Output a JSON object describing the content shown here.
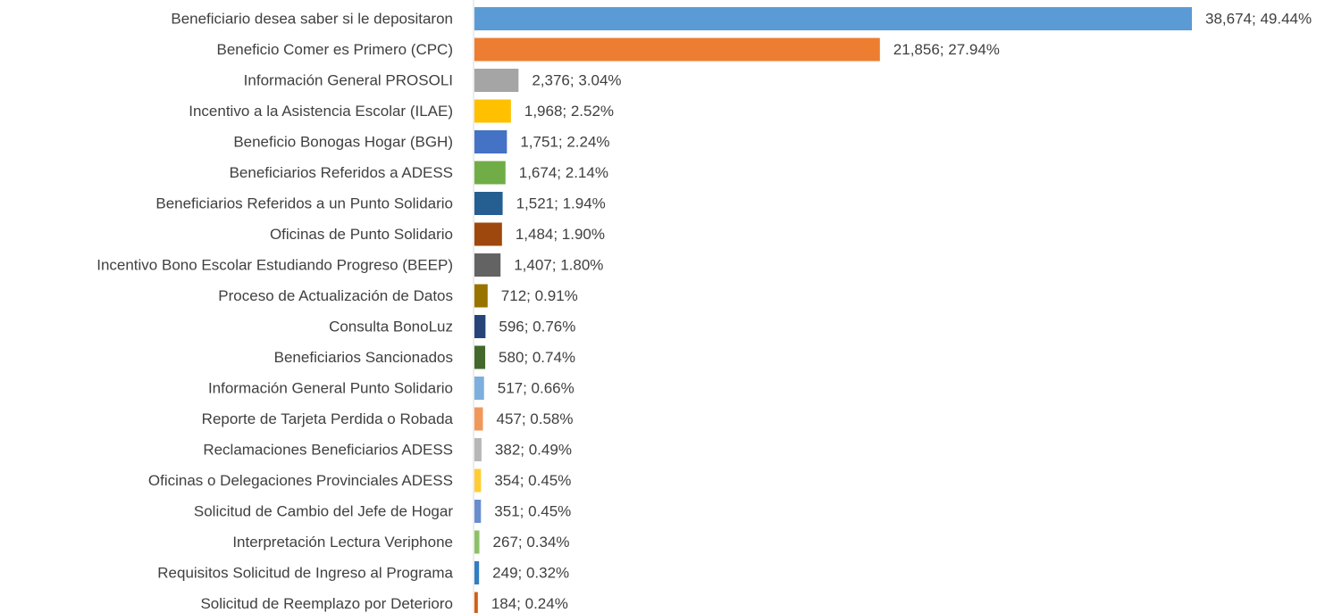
{
  "chart_data": {
    "type": "bar",
    "orientation": "horizontal",
    "categories": [
      "Beneficiario desea saber si le depositaron",
      "Beneficio Comer es Primero (CPC)",
      "Información General PROSOLI",
      "Incentivo a la Asistencia Escolar (ILAE)",
      "Beneficio Bonogas Hogar (BGH)",
      "Beneficiarios Referidos a ADESS",
      "Beneficiarios Referidos a un Punto Solidario",
      "Oficinas de Punto Solidario",
      "Incentivo Bono Escolar Estudiando Progreso (BEEP)",
      "Proceso de Actualización de Datos",
      "Consulta BonoLuz",
      "Beneficiarios Sancionados",
      "Información General Punto Solidario",
      "Reporte de Tarjeta Perdida o Robada",
      "Reclamaciones Beneficiarios ADESS",
      "Oficinas o Delegaciones Provinciales ADESS",
      "Solicitud de Cambio del Jefe de Hogar",
      "Interpretación Lectura Veriphone",
      "Requisitos Solicitud de Ingreso al Programa",
      "Solicitud de Reemplazo por Deterioro"
    ],
    "values": [
      38674,
      21856,
      2376,
      1968,
      1751,
      1674,
      1521,
      1484,
      1407,
      712,
      596,
      580,
      517,
      457,
      382,
      354,
      351,
      267,
      249,
      184
    ],
    "value_labels": [
      "38,674; 49.44%",
      "21,856; 27.94%",
      "2,376; 3.04%",
      "1,968; 2.52%",
      "1,751; 2.24%",
      "1,674; 2.14%",
      "1,521; 1.94%",
      "1,484; 1.90%",
      "1,407; 1.80%",
      "712; 0.91%",
      "596; 0.76%",
      "580; 0.74%",
      "517; 0.66%",
      "457; 0.58%",
      "382; 0.49%",
      "354; 0.45%",
      "351; 0.45%",
      "267; 0.34%",
      "249; 0.32%",
      "184; 0.24%"
    ],
    "colors": [
      "#5B9BD5",
      "#ED7D31",
      "#A5A5A5",
      "#FFC000",
      "#4472C4",
      "#70AD47",
      "#255E91",
      "#9E480E",
      "#636363",
      "#997300",
      "#264478",
      "#43682B",
      "#7CAFDD",
      "#F1975A",
      "#B7B7B7",
      "#FFCD33",
      "#698ED0",
      "#8CC168",
      "#327DC2",
      "#D26012"
    ]
  }
}
